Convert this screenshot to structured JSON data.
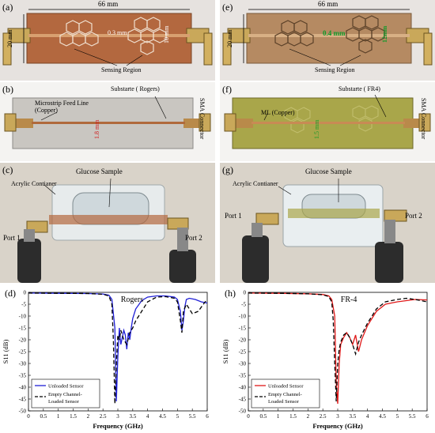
{
  "panels": {
    "a": {
      "label": "(a)",
      "width_label": "66 mm",
      "height_label": "20 mm",
      "gap_label": "0.3 mm",
      "cell_label": "10 mm",
      "region_label": "Sensing Region"
    },
    "b": {
      "label": "(b)",
      "feed_label": "Microstrip Feed Line\n(Copper)",
      "substrate_label": "Substarte ( Rogers)",
      "line_width_label": "1.8 mm",
      "connector_label": "SMA Connector"
    },
    "c": {
      "label": "(c)",
      "container_label": "Acrylic Contianer",
      "sample_label": "Glucose Sample",
      "port1": "Port 1",
      "port2": "Port 2"
    },
    "d": {
      "label": "(d)",
      "annotation": "Rogers"
    },
    "e": {
      "label": "(e)",
      "width_label": "66 mm",
      "height_label": "20 mm",
      "gap_label": "0.4 mm",
      "cell_label": "12mm",
      "region_label": "Sensing Region"
    },
    "f": {
      "label": "(f)",
      "feed_label": "ML (Copper)",
      "substrate_label": "Substarte ( FR4)",
      "line_width_label": "1.5 mm",
      "connector_label": "SMA Connector"
    },
    "g": {
      "label": "(g)",
      "container_label": "Acrylic Contianer",
      "sample_label": "Glucose Sample",
      "port1": "Port 1",
      "port2": "Port 2"
    },
    "h": {
      "label": "(h)",
      "annotation": "FR-4"
    }
  },
  "colors": {
    "rogers_board": "#b3683f",
    "fr4_board": "#a9a64a",
    "unloaded_rogers": "#1f1fd6",
    "unloaded_fr4": "#e01818",
    "loaded": "#000000"
  },
  "chart_data": [
    {
      "type": "line",
      "panel": "d",
      "xlabel": "Frequency (GHz)",
      "ylabel": "S11 (dB)",
      "xlim": [
        0,
        6
      ],
      "ylim": [
        -50,
        0
      ],
      "xticks": [
        "0",
        "0.5",
        "1",
        "1.5",
        "2",
        "2.5",
        "3",
        "3.5",
        "4",
        "4.5",
        "5",
        "5.5",
        "6"
      ],
      "yticks": [
        "0",
        "-5",
        "-10",
        "-15",
        "-20",
        "-25",
        "-30",
        "-35",
        "-40",
        "-45",
        "-50"
      ],
      "series": [
        {
          "name": "Unloaded Sensor",
          "style": "solid",
          "x": [
            0,
            1,
            2,
            2.5,
            2.7,
            2.8,
            2.9,
            2.95,
            3.0,
            3.05,
            3.1,
            3.2,
            3.25,
            3.3,
            3.35,
            3.4,
            3.45,
            3.5,
            3.6,
            3.8,
            4.0,
            4.3,
            4.6,
            4.9,
            5.0,
            5.1,
            5.15,
            5.2,
            5.25,
            5.3,
            5.4,
            5.6,
            5.8,
            6.0
          ],
          "y": [
            -0.3,
            -0.4,
            -0.5,
            -0.7,
            -1.2,
            -3.0,
            -15,
            -46,
            -27,
            -15,
            -22,
            -16,
            -18,
            -24,
            -17,
            -20,
            -15,
            -11,
            -7,
            -3.5,
            -2,
            -1.5,
            -1.5,
            -2,
            -3,
            -8,
            -16,
            -12,
            -6,
            -3,
            -2.5,
            -3,
            -4,
            -4.5
          ]
        },
        {
          "name": "Empty Channel-Loaded Sensor",
          "style": "dashed",
          "x": [
            0,
            1,
            2,
            2.5,
            2.7,
            2.8,
            2.85,
            2.9,
            2.95,
            3.0,
            3.05,
            3.1,
            3.2,
            3.3,
            3.4,
            3.5,
            3.6,
            3.8,
            4.0,
            4.3,
            4.6,
            4.9,
            5.0,
            5.1,
            5.15,
            5.2,
            5.3,
            5.5,
            5.7,
            5.9,
            6.0
          ],
          "y": [
            -0.3,
            -0.4,
            -0.5,
            -0.8,
            -1.5,
            -5,
            -20,
            -47,
            -30,
            -18,
            -20,
            -16,
            -20,
            -22,
            -17,
            -15,
            -12,
            -8,
            -4,
            -2,
            -1.8,
            -2.5,
            -4,
            -12,
            -17,
            -8,
            -5,
            -9,
            -8,
            -4.5,
            -3
          ]
        }
      ],
      "legend": "bottom-left"
    },
    {
      "type": "line",
      "panel": "h",
      "xlabel": "Frequency (GHz)",
      "ylabel": "S11 (dB)",
      "xlim": [
        0,
        6
      ],
      "ylim": [
        -50,
        0
      ],
      "xticks": [
        "0",
        "0.5",
        "1",
        "1.5",
        "2",
        "2.5",
        "3",
        "3.5",
        "4",
        "4.5",
        "5",
        "5.5",
        "6"
      ],
      "yticks": [
        "0",
        "-5",
        "-10",
        "-15",
        "-20",
        "-25",
        "-30",
        "-35",
        "-40",
        "-45",
        "-50"
      ],
      "series": [
        {
          "name": "Unloaded Sensor",
          "style": "solid",
          "x": [
            0,
            1,
            2,
            2.5,
            2.7,
            2.8,
            2.9,
            2.95,
            3.0,
            3.05,
            3.1,
            3.2,
            3.3,
            3.4,
            3.5,
            3.6,
            3.7,
            3.8,
            4.0,
            4.3,
            4.6,
            5.0,
            5.3,
            5.6,
            6.0
          ],
          "y": [
            -0.3,
            -0.4,
            -0.6,
            -0.9,
            -1.5,
            -3,
            -10,
            -38,
            -47,
            -30,
            -22,
            -19,
            -17,
            -19,
            -22,
            -18,
            -25,
            -20,
            -14,
            -8,
            -5,
            -4,
            -3.5,
            -3,
            -3.2
          ]
        },
        {
          "name": "Empty Channel-Loaded Sensor",
          "style": "dashed",
          "x": [
            0,
            1,
            2,
            2.5,
            2.7,
            2.8,
            2.85,
            2.9,
            2.95,
            3.0,
            3.05,
            3.1,
            3.2,
            3.3,
            3.4,
            3.5,
            3.6,
            3.7,
            3.8,
            4.0,
            4.3,
            4.6,
            5.0,
            5.3,
            5.6,
            6.0
          ],
          "y": [
            -0.3,
            -0.4,
            -0.6,
            -1.0,
            -1.8,
            -4,
            -12,
            -30,
            -46,
            -30,
            -24,
            -21,
            -18,
            -17,
            -19,
            -22,
            -26,
            -21,
            -18,
            -13,
            -7,
            -4,
            -3,
            -2.5,
            -3,
            -4
          ]
        }
      ],
      "legend": "bottom-left"
    }
  ]
}
